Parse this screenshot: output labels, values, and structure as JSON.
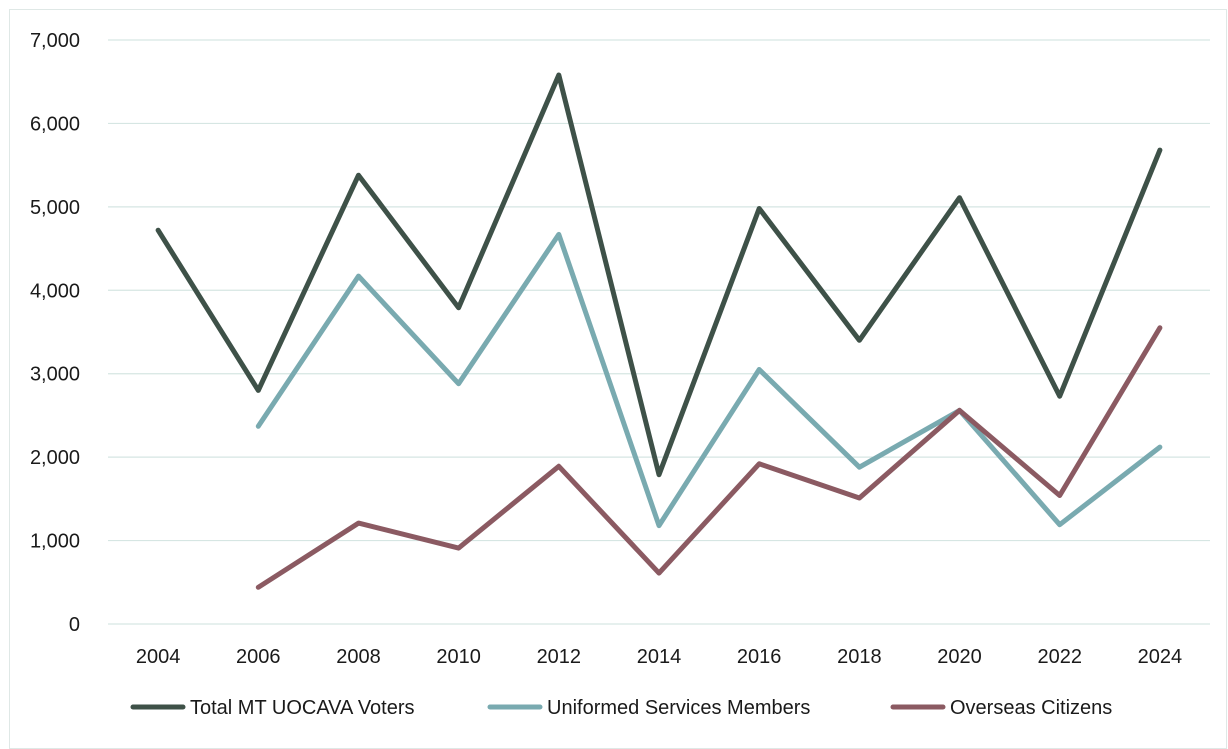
{
  "chart_data": {
    "type": "line",
    "x": [
      "2004",
      "2006",
      "2008",
      "2010",
      "2012",
      "2014",
      "2016",
      "2018",
      "2020",
      "2022",
      "2024"
    ],
    "series": [
      {
        "name": "Total MT UOCAVA Voters",
        "color": "#3e5148",
        "values": [
          4720,
          2800,
          5380,
          3790,
          6580,
          1790,
          4980,
          3400,
          5110,
          2730,
          5680
        ]
      },
      {
        "name": "Uniformed Services Members",
        "color": "#79aab0",
        "values": [
          null,
          2370,
          4170,
          2880,
          4670,
          1180,
          3050,
          1880,
          2560,
          1190,
          2120
        ]
      },
      {
        "name": "Overseas Citizens",
        "color": "#8b5a62",
        "values": [
          null,
          440,
          1210,
          910,
          1890,
          610,
          1920,
          1510,
          2560,
          1540,
          3550
        ]
      }
    ],
    "ylim": [
      0,
      7000
    ],
    "yticks": [
      "0",
      "1,000",
      "2,000",
      "3,000",
      "4,000",
      "5,000",
      "6,000",
      "7,000"
    ],
    "grid": true,
    "legend": "bottom",
    "title": "",
    "xlabel": "",
    "ylabel": ""
  }
}
